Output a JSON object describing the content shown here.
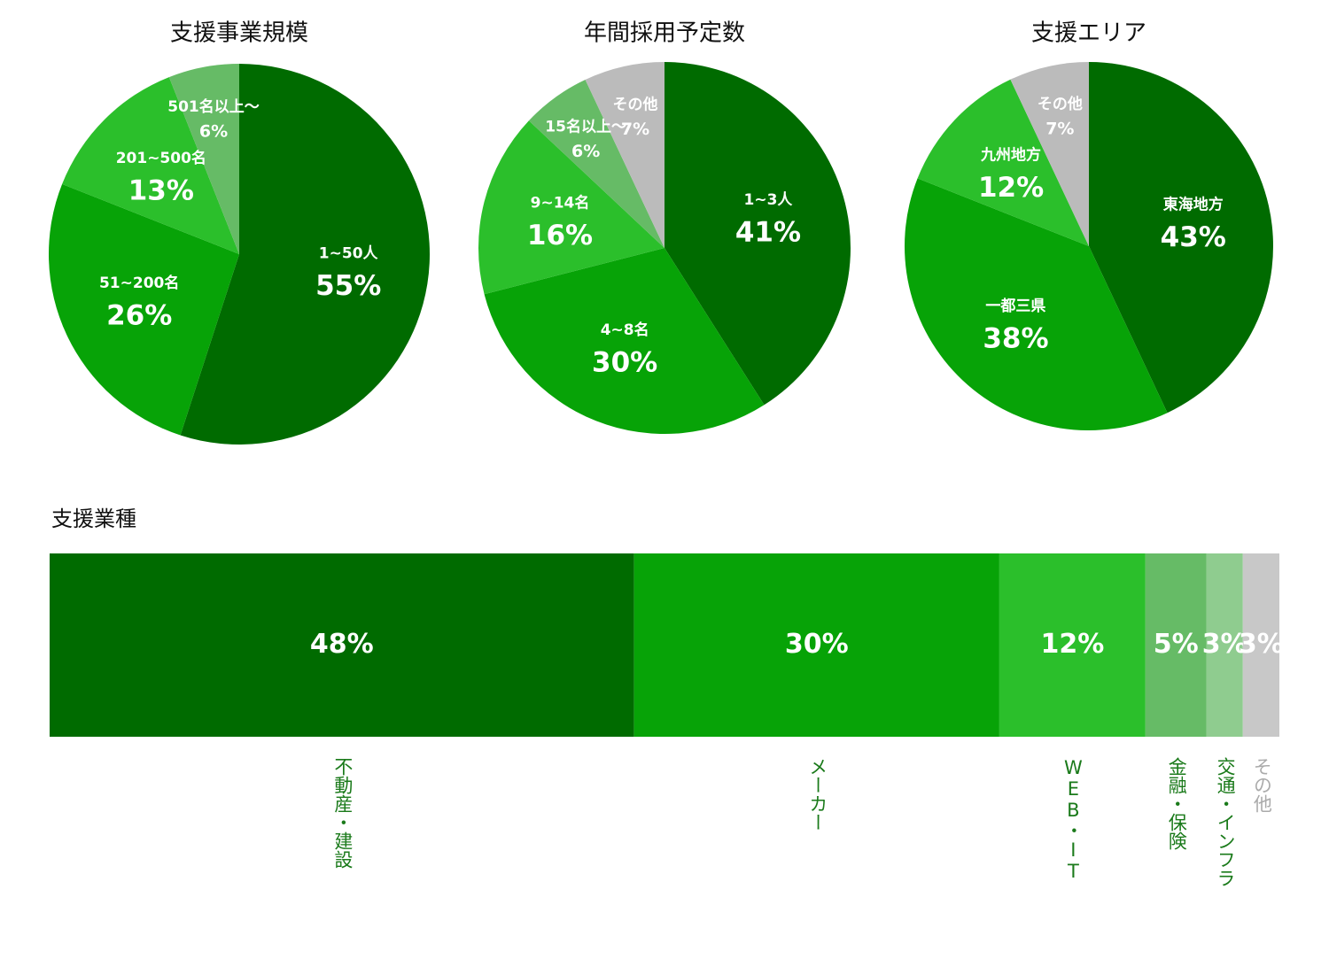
{
  "chart_data": [
    {
      "type": "pie",
      "title": "支援事業規模",
      "categories": [
        "1~50人",
        "51~200名",
        "201~500名",
        "501名以上～"
      ],
      "values": [
        55,
        26,
        13,
        6
      ],
      "value_labels": [
        "55%",
        "26%",
        "13%",
        "6%"
      ],
      "colors": [
        "#006b00",
        "#07a307",
        "#2bbf2b",
        "#66bb66"
      ]
    },
    {
      "type": "pie",
      "title": "年間採用予定数",
      "categories": [
        "1~3人",
        "4~8名",
        "9~14名",
        "15名以上～",
        "その他"
      ],
      "values": [
        41,
        30,
        16,
        6,
        7
      ],
      "value_labels": [
        "41%",
        "30%",
        "16%",
        "6%",
        "7%"
      ],
      "colors": [
        "#006b00",
        "#07a307",
        "#2bbf2b",
        "#66bb66",
        "#bbbbbb"
      ]
    },
    {
      "type": "pie",
      "title": "支援エリア",
      "categories": [
        "東海地方",
        "一都三県",
        "九州地方",
        "その他"
      ],
      "values": [
        43,
        38,
        12,
        7
      ],
      "value_labels": [
        "43%",
        "38%",
        "12%",
        "7%"
      ],
      "colors": [
        "#006b00",
        "#07a307",
        "#2bbf2b",
        "#bbbbbb"
      ]
    },
    {
      "type": "stacked-bar",
      "title": "支援業種",
      "categories": [
        "不動産・建設",
        "メーカー",
        "WEB・IT",
        "金融・保険",
        "交通・インフラ",
        "その他"
      ],
      "values": [
        48,
        30,
        12,
        5,
        3,
        3
      ],
      "value_labels": [
        "48%",
        "30%",
        "12%",
        "5%",
        "3%",
        "3%"
      ],
      "colors": [
        "#006b00",
        "#07a307",
        "#2bbf2b",
        "#66bb66",
        "#8fcc8f",
        "#c8c8c8"
      ],
      "label_colors": [
        "#1a7a1a",
        "#1a7a1a",
        "#1a7a1a",
        "#1a7a1a",
        "#1a7a1a",
        "#aaaaaa"
      ]
    }
  ]
}
